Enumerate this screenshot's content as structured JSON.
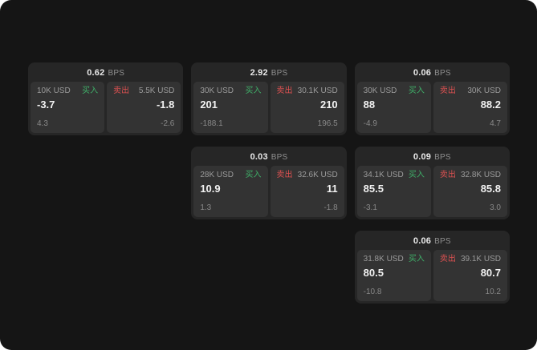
{
  "labels": {
    "bps": "BPS",
    "buy": "买入",
    "sell": "卖出"
  },
  "colors": {
    "buy": "#3fae68",
    "sell": "#dd5151",
    "background": "#151515",
    "card": "#262626",
    "panel": "#333333"
  },
  "cards": [
    {
      "spread": "0.62",
      "buy": {
        "size": "10K USD",
        "price": "-3.7",
        "change": "4.3"
      },
      "sell": {
        "size": "5.5K USD",
        "price": "-1.8",
        "change": "-2.6"
      }
    },
    {
      "spread": "2.92",
      "buy": {
        "size": "30K USD",
        "price": "201",
        "change": "-188.1"
      },
      "sell": {
        "size": "30.1K USD",
        "price": "210",
        "change": "196.5"
      }
    },
    {
      "spread": "0.06",
      "buy": {
        "size": "30K USD",
        "price": "88",
        "change": "-4.9"
      },
      "sell": {
        "size": "30K USD",
        "price": "88.2",
        "change": "4.7"
      }
    },
    {
      "spread": "0.03",
      "buy": {
        "size": "28K USD",
        "price": "10.9",
        "change": "1.3"
      },
      "sell": {
        "size": "32.6K USD",
        "price": "11",
        "change": "-1.8"
      }
    },
    {
      "spread": "0.09",
      "buy": {
        "size": "34.1K USD",
        "price": "85.5",
        "change": "-3.1"
      },
      "sell": {
        "size": "32.8K USD",
        "price": "85.8",
        "change": "3.0"
      }
    },
    {
      "spread": "0.06",
      "buy": {
        "size": "31.8K USD",
        "price": "80.5",
        "change": "-10.8"
      },
      "sell": {
        "size": "39.1K USD",
        "price": "80.7",
        "change": "10.2"
      }
    }
  ]
}
